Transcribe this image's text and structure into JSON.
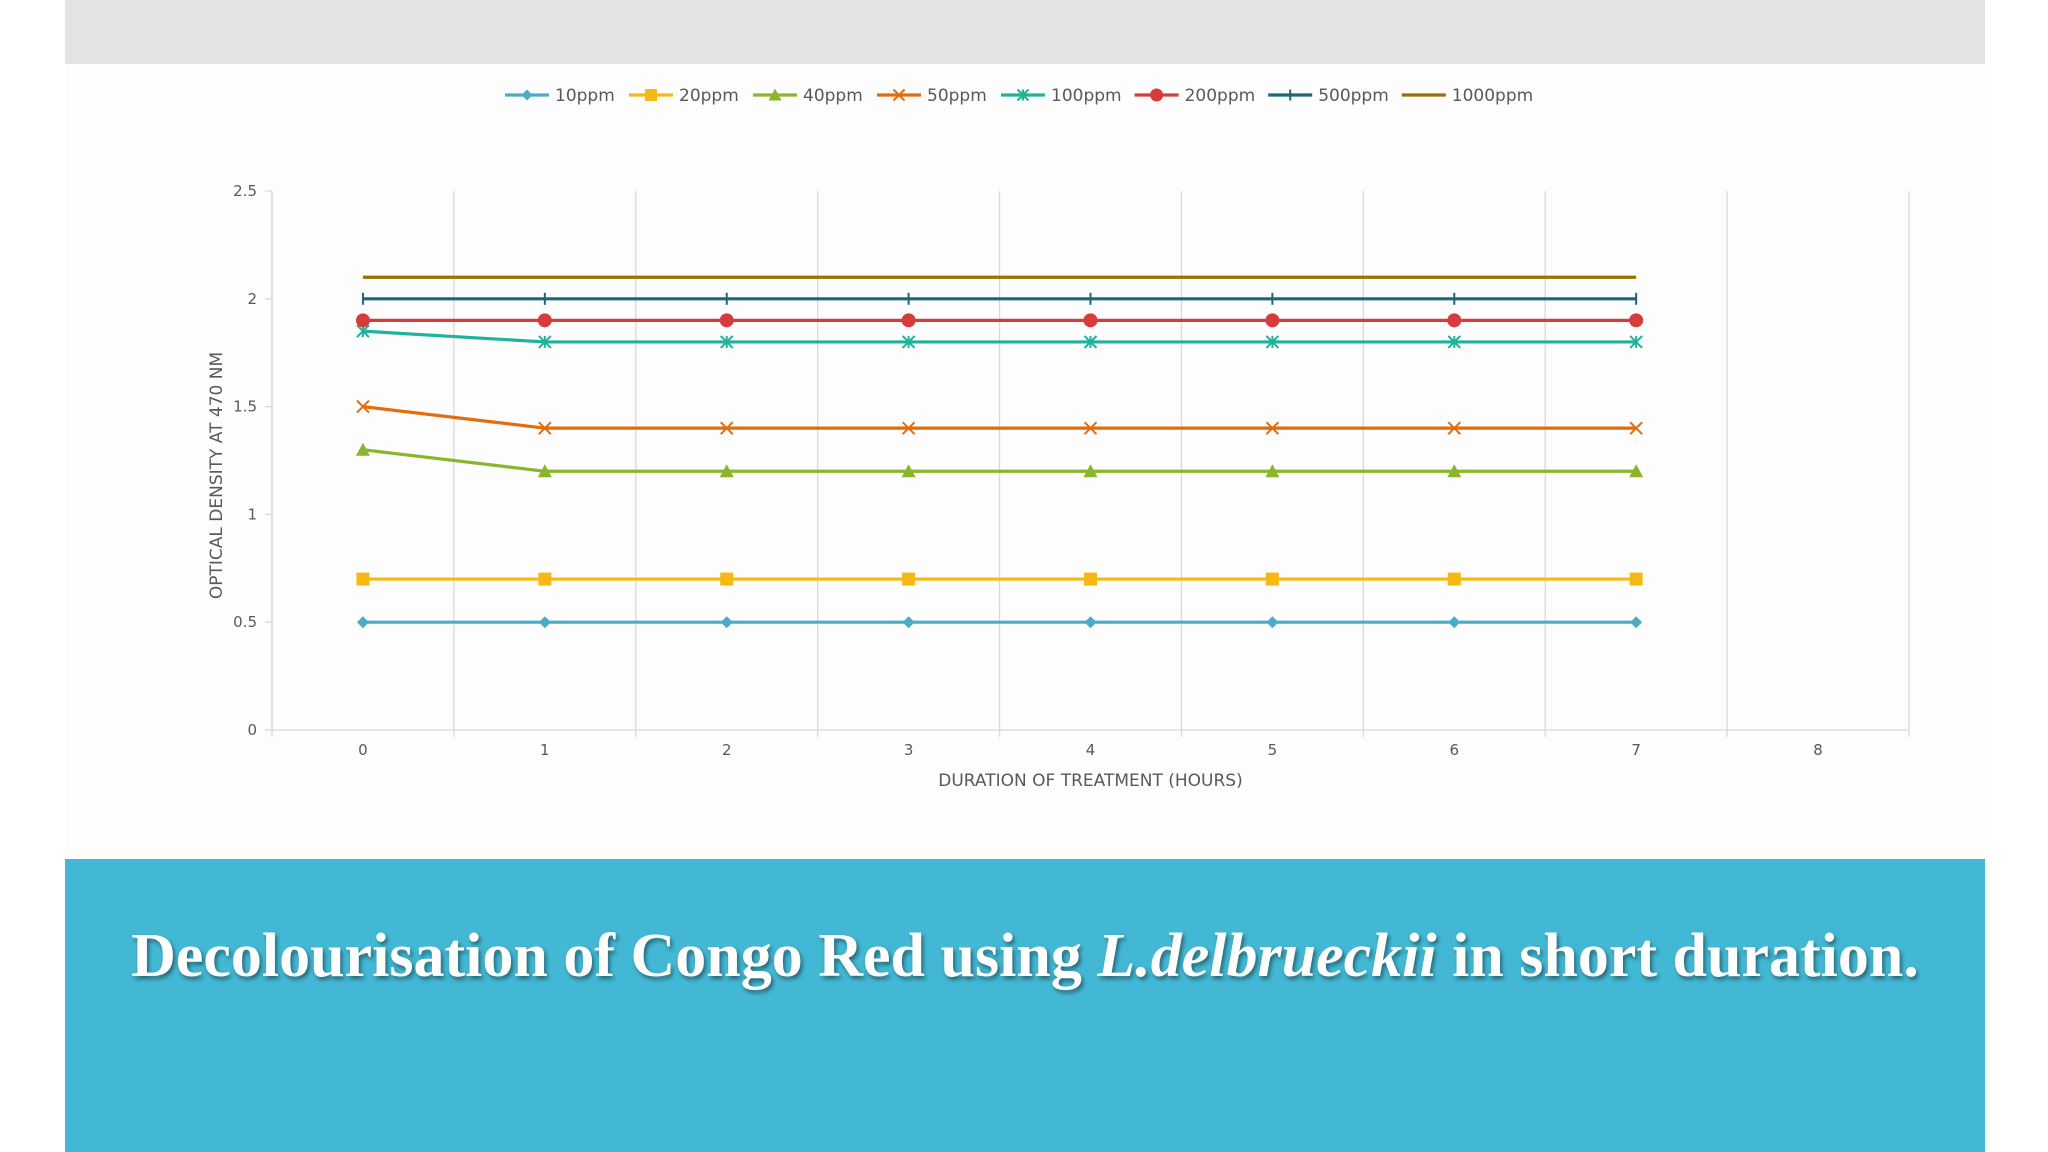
{
  "caption": {
    "before": "Decolourisation of Congo Red using ",
    "species": "L.delbrueckii",
    "after": " in short duration."
  },
  "chart_data": {
    "type": "line",
    "title": "",
    "xlabel": "DURATION OF TREATMENT (HOURS)",
    "ylabel": "OPTICAL DENSITY AT 470 NM",
    "x": [
      0,
      1,
      2,
      3,
      4,
      5,
      6,
      7
    ],
    "x_ticks": [
      "0",
      "1",
      "2",
      "3",
      "4",
      "5",
      "6",
      "7",
      "8"
    ],
    "y_ticks": [
      "0",
      "0.5",
      "1",
      "1.5",
      "2",
      "2.5"
    ],
    "xlim": [
      -0.5,
      8.5
    ],
    "ylim": [
      0,
      2.5
    ],
    "grid": "vertical",
    "legend_position": "top",
    "series": [
      {
        "name": "10ppm",
        "color": "#4bacc6",
        "marker": "diamond",
        "values": [
          0.5,
          0.5,
          0.5,
          0.5,
          0.5,
          0.5,
          0.5,
          0.5
        ]
      },
      {
        "name": "20ppm",
        "color": "#f6b913",
        "marker": "square",
        "values": [
          0.7,
          0.7,
          0.7,
          0.7,
          0.7,
          0.7,
          0.7,
          0.7
        ]
      },
      {
        "name": "40ppm",
        "color": "#8ab52c",
        "marker": "triangle",
        "values": [
          1.3,
          1.2,
          1.2,
          1.2,
          1.2,
          1.2,
          1.2,
          1.2
        ]
      },
      {
        "name": "50ppm",
        "color": "#e46c0a",
        "marker": "x",
        "values": [
          1.5,
          1.4,
          1.4,
          1.4,
          1.4,
          1.4,
          1.4,
          1.4
        ]
      },
      {
        "name": "100ppm",
        "color": "#1fb39a",
        "marker": "star",
        "values": [
          1.85,
          1.8,
          1.8,
          1.8,
          1.8,
          1.8,
          1.8,
          1.8
        ]
      },
      {
        "name": "200ppm",
        "color": "#d63c3c",
        "marker": "circle",
        "values": [
          1.9,
          1.9,
          1.9,
          1.9,
          1.9,
          1.9,
          1.9,
          1.9
        ]
      },
      {
        "name": "500ppm",
        "color": "#1f6677",
        "marker": "plus",
        "values": [
          2.0,
          2.0,
          2.0,
          2.0,
          2.0,
          2.0,
          2.0,
          2.0
        ]
      },
      {
        "name": "1000ppm",
        "color": "#9a7100",
        "marker": "none",
        "values": [
          2.1,
          2.1,
          2.1,
          2.1,
          2.1,
          2.1,
          2.1,
          2.1
        ]
      }
    ]
  }
}
